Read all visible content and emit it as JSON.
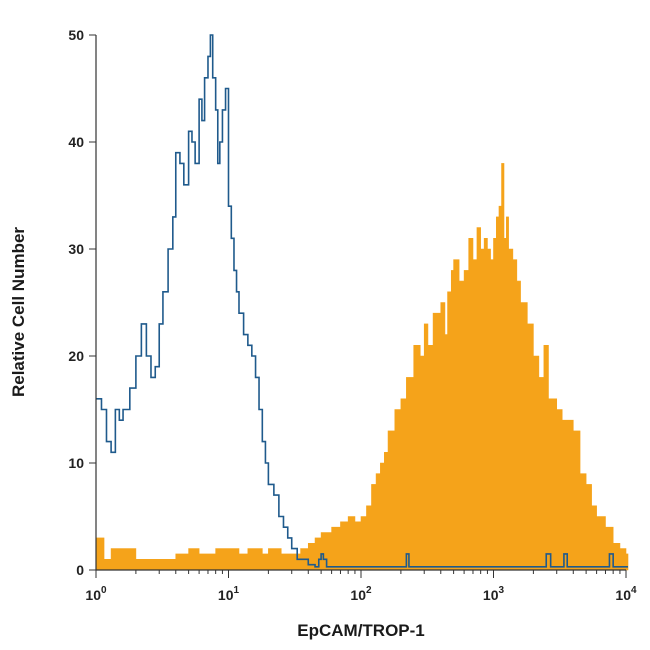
{
  "chart_data": {
    "type": "area",
    "xlabel": "EpCAM/TROP-1",
    "ylabel": "Relative Cell Number",
    "x_scale": "log",
    "xlim": [
      1,
      10000
    ],
    "ylim": [
      0,
      50
    ],
    "x_ticks": [
      {
        "value": 1,
        "base": "10",
        "exp": "0"
      },
      {
        "value": 10,
        "base": "10",
        "exp": "1"
      },
      {
        "value": 100,
        "base": "10",
        "exp": "2"
      },
      {
        "value": 1000,
        "base": "10",
        "exp": "3"
      },
      {
        "value": 10000,
        "base": "10",
        "exp": "4"
      }
    ],
    "y_ticks": [
      0,
      10,
      20,
      30,
      40,
      50
    ],
    "grid": false,
    "legend": "none",
    "series": [
      {
        "style": "filled",
        "color": "#F5A31A",
        "x": [
          1,
          1.15,
          1.3,
          2,
          3,
          4,
          5,
          6,
          8,
          10,
          12,
          14,
          16,
          18,
          20,
          25,
          30,
          35,
          40,
          45,
          50,
          60,
          70,
          80,
          90,
          100,
          110,
          120,
          130,
          140,
          150,
          160,
          180,
          200,
          220,
          250,
          280,
          300,
          320,
          350,
          400,
          430,
          450,
          480,
          500,
          550,
          600,
          650,
          700,
          750,
          800,
          850,
          900,
          950,
          1000,
          1050,
          1100,
          1150,
          1200,
          1250,
          1300,
          1400,
          1500,
          1600,
          1800,
          2000,
          2200,
          2400,
          2600,
          2800,
          3000,
          3300,
          3600,
          4000,
          4500,
          5000,
          5500,
          6000,
          7000,
          8000,
          9000,
          10000
        ],
        "y": [
          3,
          1,
          2,
          1,
          1,
          1.5,
          2,
          1.5,
          2,
          2,
          1.5,
          2,
          2,
          1.5,
          2,
          1.5,
          1.5,
          2,
          2.5,
          3,
          3.5,
          4,
          4.5,
          5,
          4.5,
          5,
          6,
          8,
          9,
          10,
          11,
          13,
          15,
          16,
          18,
          21,
          20,
          23,
          21,
          24,
          25,
          22,
          26,
          28,
          29,
          27,
          28,
          31,
          29,
          32,
          30,
          31,
          30,
          29,
          31,
          33,
          34,
          38,
          31,
          33,
          30,
          29,
          27,
          25,
          23,
          20,
          18,
          21,
          16,
          16,
          15,
          14,
          14,
          13,
          9,
          8,
          6,
          5,
          4,
          2.5,
          2,
          1.5
        ]
      },
      {
        "style": "outline",
        "color": "#1F5A8C",
        "x": [
          1,
          1.1,
          1.2,
          1.3,
          1.4,
          1.5,
          1.6,
          1.8,
          2,
          2.2,
          2.4,
          2.6,
          2.8,
          3,
          3.2,
          3.5,
          3.8,
          4,
          4.3,
          4.6,
          5,
          5.3,
          5.6,
          6,
          6.3,
          6.6,
          7,
          7.3,
          7.6,
          8,
          8.3,
          8.6,
          9,
          9.5,
          10,
          10.5,
          11,
          11.5,
          12,
          13,
          14,
          15,
          16,
          17,
          18,
          19,
          20,
          22,
          24,
          26,
          28,
          30,
          33,
          36,
          40,
          45,
          48,
          50,
          52,
          55,
          60,
          80,
          100,
          150,
          200,
          220,
          230,
          250,
          300,
          500,
          1000,
          2000,
          2500,
          2700,
          3000,
          3400,
          3600,
          4000,
          5000,
          7000,
          7500,
          8000,
          10000
        ],
        "y": [
          16,
          15,
          12,
          11,
          15,
          14,
          15,
          17,
          20,
          23,
          20,
          18,
          19,
          23,
          26,
          30,
          33,
          39,
          38,
          36,
          41,
          40,
          38,
          44,
          42,
          46,
          48,
          50,
          46,
          43,
          38,
          40,
          43,
          45,
          34,
          31,
          28,
          26,
          24,
          22,
          21,
          20,
          18,
          15,
          12,
          10,
          8,
          7,
          5,
          4,
          3,
          2,
          1,
          1,
          0.5,
          0.3,
          1,
          1.5,
          1,
          0.3,
          0.3,
          0.3,
          0.3,
          0.3,
          0.3,
          1.5,
          0.3,
          0.3,
          0.3,
          0.3,
          0.3,
          0.3,
          1.5,
          0.3,
          0.3,
          1.5,
          0.3,
          0.3,
          0.3,
          0.3,
          1.5,
          0.3,
          0.3
        ]
      }
    ]
  }
}
